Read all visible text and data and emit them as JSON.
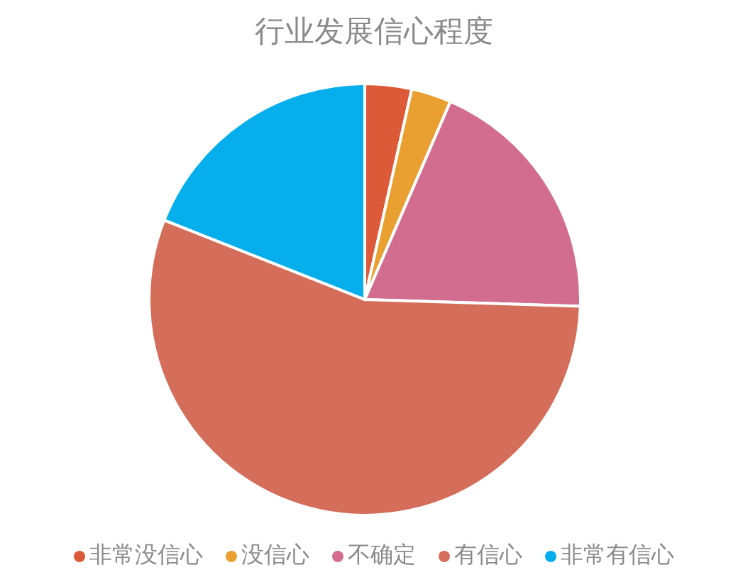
{
  "chart_data": {
    "type": "pie",
    "title": "行业发展信心程度",
    "categories": [
      "非常没信心",
      "没信心",
      "不确定",
      "有信心",
      "非常有信心"
    ],
    "values": [
      3.5,
      3,
      19,
      55.5,
      19
    ],
    "colors": [
      "#dd5a38",
      "#e9a030",
      "#d26d8f",
      "#d46e5a",
      "#06aeec"
    ],
    "legend": "bottom"
  }
}
